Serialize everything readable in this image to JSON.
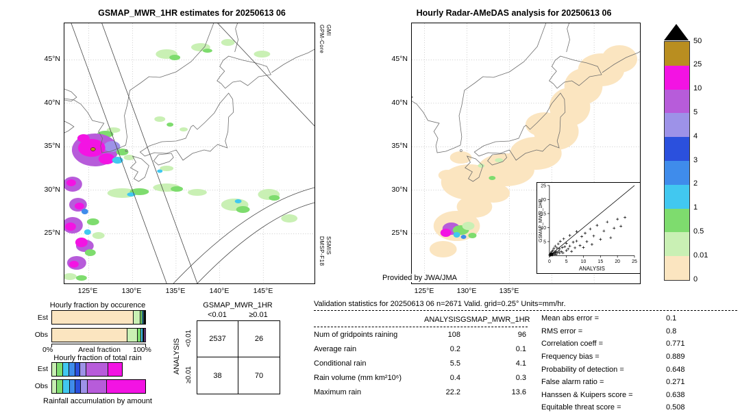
{
  "left_panel": {
    "title": "GSMAP_MWR_1HR estimates for 20250613 06",
    "sensor_top": [
      "GPM-Core",
      "GMI"
    ],
    "sensor_bottom": [
      "DMSP-F18",
      "SSMIS"
    ],
    "lat_ticks": [
      "45°N",
      "40°N",
      "35°N",
      "30°N",
      "25°N"
    ],
    "lon_ticks": [
      "125°E",
      "130°E",
      "135°E",
      "140°E",
      "145°E"
    ]
  },
  "right_panel": {
    "title": "Hourly Radar-AMeDAS analysis for 20250613 06",
    "credit": "Provided by JWA/JMA",
    "lat_ticks": [
      "45°N",
      "40°N",
      "35°N",
      "30°N",
      "25°N"
    ],
    "lon_ticks": [
      "125°E",
      "130°E",
      "135°E"
    ]
  },
  "colorbar": {
    "units": "mm/hr",
    "labels": [
      "50",
      "25",
      "10",
      "5",
      "4",
      "3",
      "2",
      "1",
      "0.5",
      "0.01",
      "0"
    ],
    "cells": [
      "#b98e20",
      "#f313e3",
      "#b75cda",
      "#9d92e8",
      "#2b50dd",
      "#3f8ceb",
      "#41c8f0",
      "#7edc6e",
      "#c9f0b4",
      "#fbe5c0"
    ],
    "overflow_color": "#000000"
  },
  "inset_scatter": {
    "xlabel": "ANALYSIS",
    "ylabel": "GSMAP_MWR_1HR",
    "x_ticks": [
      "0",
      "5",
      "10",
      "15",
      "20",
      "25"
    ],
    "y_ticks": [
      "5",
      "10",
      "15",
      "20",
      "25"
    ]
  },
  "occurrence_chart": {
    "title": "Hourly fraction by occurence",
    "xlabel": "Areal fraction",
    "x_min_label": "0%",
    "x_max_label": "100%",
    "row_labels": [
      "Est",
      "Obs"
    ]
  },
  "totalrain_chart": {
    "title": "Hourly fraction of total rain",
    "caption": "Rainfall accumulation by amount",
    "row_labels": [
      "Est",
      "Obs"
    ]
  },
  "contingency": {
    "title": "GSMAP_MWR_1HR",
    "ylabel": "ANALYSIS",
    "col_labels": [
      "<0.01",
      "≥0.01"
    ],
    "row_labels": [
      "<0.01",
      "≥0.01"
    ],
    "values": [
      [
        "2537",
        "26"
      ],
      [
        "38",
        "70"
      ]
    ]
  },
  "stats": {
    "title": "Validation statistics for 20250613 06  n=2671 Valid. grid=0.25° Units=mm/hr.",
    "col_headers": [
      "ANALYSIS",
      "GSMAP_MWR_1HR"
    ],
    "rows": [
      {
        "label": "Num of gridpoints raining",
        "analysis": "108",
        "gsmap": "96"
      },
      {
        "label": "Average rain",
        "analysis": "0.2",
        "gsmap": "0.1"
      },
      {
        "label": "Conditional rain",
        "analysis": "5.5",
        "gsmap": "4.1"
      },
      {
        "label": "Rain volume (mm km²10⁶)",
        "analysis": "0.4",
        "gsmap": "0.3"
      },
      {
        "label": "Maximum rain",
        "analysis": "22.2",
        "gsmap": "13.6"
      }
    ],
    "scores": [
      {
        "label": "Mean abs error =",
        "value": "0.1"
      },
      {
        "label": "RMS error =",
        "value": "0.8"
      },
      {
        "label": "Correlation coeff =",
        "value": "0.771"
      },
      {
        "label": "Frequency bias =",
        "value": "0.889"
      },
      {
        "label": "Probability of detection =",
        "value": "0.648"
      },
      {
        "label": "False alarm ratio =",
        "value": "0.271"
      },
      {
        "label": "Hanssen & Kuipers score =",
        "value": "0.638"
      },
      {
        "label": "Equitable threat score =",
        "value": "0.508"
      }
    ]
  },
  "chart_data": [
    {
      "type": "heatmap",
      "name": "gsmap_mwr_map",
      "title": "GSMAP_MWR_1HR estimates for 20250613 06",
      "units": "mm/hr",
      "extent": {
        "lon": [
          122,
          151
        ],
        "lat": [
          19.5,
          49
        ]
      },
      "sensors": [
        "GPM-Core GMI",
        "DMSP-F18 SSMIS"
      ],
      "colorbar_levels": [
        0,
        0.01,
        0.5,
        1,
        2,
        3,
        4,
        5,
        10,
        25,
        50
      ],
      "features": "Heavy rain cluster 5-25 mm/hr over Yellow Sea west/south of Korea (~33-36N, 124-127E); chain of 5-25 mm/hr cells along ~121-124E from 24N to 33N; light rain 0.01-1 mm/hr bands near 29-31N and scattered near 45N; satellite swath edges drawn as diagonal lines and an arc gap in the lower right."
    },
    {
      "type": "heatmap",
      "name": "radar_amedas_map",
      "title": "Hourly Radar-AMeDAS analysis for 20250613 06",
      "units": "mm/hr",
      "credit": "Provided by JWA/JMA",
      "features": "Trace rain 0-0.01 mm/hr (peach) along the Pacific side of Japan from south of Kyushu through Kanto up to eastern Hokkaido; rain cluster up to 10-25 mm/hr near the Amami islands (~26-28N, 127-130E) with 0.01-1 mm/hr fringes."
    },
    {
      "type": "scatter",
      "name": "validation_scatter",
      "xlabel": "ANALYSIS",
      "ylabel": "GSMAP_MWR_1HR",
      "xlim": [
        0,
        25
      ],
      "ylim": [
        0,
        25
      ],
      "identity_line": true,
      "marker": "+",
      "note": "point positions estimated from pixels; max analysis 22.2, max estimate 13.6",
      "points": [
        [
          0.1,
          0.1
        ],
        [
          0.15,
          0.4
        ],
        [
          0.2,
          0.1
        ],
        [
          0.3,
          0.6
        ],
        [
          0.3,
          0.2
        ],
        [
          0.4,
          1
        ],
        [
          0.5,
          0.2
        ],
        [
          0.5,
          0.8
        ],
        [
          0.6,
          0.3
        ],
        [
          0.7,
          1.4
        ],
        [
          0.8,
          0.5
        ],
        [
          0.9,
          0.2
        ],
        [
          1,
          0.6
        ],
        [
          1,
          1.9
        ],
        [
          1.2,
          0.8
        ],
        [
          1.3,
          2.6
        ],
        [
          1.5,
          0.5
        ],
        [
          1.5,
          1.2
        ],
        [
          1.7,
          3.4
        ],
        [
          1.8,
          0.9
        ],
        [
          2,
          1.5
        ],
        [
          2,
          0.4
        ],
        [
          2.2,
          2.8
        ],
        [
          2.4,
          1.1
        ],
        [
          2.6,
          4.2
        ],
        [
          2.8,
          1.7
        ],
        [
          3,
          0.9
        ],
        [
          3,
          2.4
        ],
        [
          3.2,
          5.1
        ],
        [
          3.5,
          1.4
        ],
        [
          3.8,
          2.9
        ],
        [
          4,
          1
        ],
        [
          4.2,
          6
        ],
        [
          4.5,
          3.2
        ],
        [
          5,
          1.8
        ],
        [
          5,
          4.4
        ],
        [
          5.5,
          2.4
        ],
        [
          6,
          7.2
        ],
        [
          6,
          3.4
        ],
        [
          6.5,
          1.5
        ],
        [
          7,
          4.8
        ],
        [
          7.5,
          2.8
        ],
        [
          8,
          8.6
        ],
        [
          8,
          5.2
        ],
        [
          9,
          3.6
        ],
        [
          9.5,
          6.8
        ],
        [
          10,
          2.9
        ],
        [
          10.5,
          8
        ],
        [
          11,
          5
        ],
        [
          12,
          9.5
        ],
        [
          12.5,
          4
        ],
        [
          13,
          7
        ],
        [
          14,
          10.8
        ],
        [
          15,
          5.8
        ],
        [
          16,
          8.8
        ],
        [
          17,
          12
        ],
        [
          18,
          6.4
        ],
        [
          19,
          9.8
        ],
        [
          20,
          13
        ],
        [
          21,
          10.5
        ],
        [
          22.2,
          13.6
        ]
      ]
    },
    {
      "type": "table",
      "name": "contingency_table",
      "title": "GSMAP_MWR_1HR vs ANALYSIS",
      "col_labels": [
        "<0.01",
        "≥0.01"
      ],
      "row_labels": [
        "<0.01",
        "≥0.01"
      ],
      "values": [
        [
          2537,
          26
        ],
        [
          38,
          70
        ]
      ]
    },
    {
      "type": "bar",
      "name": "hourly_fraction_by_occurrence",
      "stacked": true,
      "categories": [
        "Est",
        "Obs"
      ],
      "units": "% areal fraction",
      "xlim_labels": [
        "0%",
        "100%"
      ],
      "note": "segment percents estimated from pixels; colors follow the mm/hr colorbar classes",
      "bars": {
        "est": [
          {
            "color": "#fbe5c0",
            "pct": 88
          },
          {
            "color": "#c9f0b4",
            "pct": 7
          },
          {
            "color": "#7edc6e",
            "pct": 2.5
          },
          {
            "color": "#41c8f0",
            "pct": 1
          },
          {
            "color": "#3f8ceb",
            "pct": 0.8
          },
          {
            "color": "#2b50dd",
            "pct": 0.4
          },
          {
            "color": "#b75cda",
            "pct": 0.3
          }
        ],
        "obs": [
          {
            "color": "#fbe5c0",
            "pct": 81
          },
          {
            "color": "#c9f0b4",
            "pct": 11
          },
          {
            "color": "#7edc6e",
            "pct": 4
          },
          {
            "color": "#41c8f0",
            "pct": 1.8
          },
          {
            "color": "#3f8ceb",
            "pct": 1.2
          },
          {
            "color": "#2b50dd",
            "pct": 0.6
          },
          {
            "color": "#b75cda",
            "pct": 0.4
          }
        ]
      }
    },
    {
      "type": "bar",
      "name": "hourly_fraction_of_total_rain",
      "stacked": true,
      "categories": [
        "Est",
        "Obs"
      ],
      "units": "% of total rain by intensity class",
      "est_bar_relative_length": 0.75,
      "note": "Est bar shorter than Obs (total volume 0.3 vs 0.4); segment percents estimated from pixels",
      "bars": {
        "est": [
          {
            "color": "#c9f0b4",
            "pct": 7
          },
          {
            "color": "#7edc6e",
            "pct": 9
          },
          {
            "color": "#41c8f0",
            "pct": 9
          },
          {
            "color": "#3f8ceb",
            "pct": 8
          },
          {
            "color": "#2b50dd",
            "pct": 7
          },
          {
            "color": "#9d92e8",
            "pct": 9
          },
          {
            "color": "#b75cda",
            "pct": 31
          },
          {
            "color": "#f313e3",
            "pct": 20
          }
        ],
        "obs": [
          {
            "color": "#c9f0b4",
            "pct": 5
          },
          {
            "color": "#7edc6e",
            "pct": 7
          },
          {
            "color": "#41c8f0",
            "pct": 7
          },
          {
            "color": "#3f8ceb",
            "pct": 6
          },
          {
            "color": "#2b50dd",
            "pct": 6
          },
          {
            "color": "#9d92e8",
            "pct": 7
          },
          {
            "color": "#b75cda",
            "pct": 21
          },
          {
            "color": "#f313e3",
            "pct": 41
          }
        ]
      }
    },
    {
      "type": "table",
      "name": "validation_statistics",
      "title": "Validation statistics for 20250613 06  n=2671 Valid. grid=0.25° Units=mm/hr.",
      "columns": [
        "",
        "ANALYSIS",
        "GSMAP_MWR_1HR"
      ],
      "rows": [
        [
          "Num of gridpoints raining",
          108,
          96
        ],
        [
          "Average rain",
          0.2,
          0.1
        ],
        [
          "Conditional rain",
          5.5,
          4.1
        ],
        [
          "Rain volume (mm km²10⁶)",
          0.4,
          0.3
        ],
        [
          "Maximum rain",
          22.2,
          13.6
        ]
      ],
      "scores": {
        "Mean abs error": 0.1,
        "RMS error": 0.8,
        "Correlation coeff": 0.771,
        "Frequency bias": 0.889,
        "Probability of detection": 0.648,
        "False alarm ratio": 0.271,
        "Hanssen & Kuipers score": 0.638,
        "Equitable threat score": 0.508
      }
    }
  ]
}
